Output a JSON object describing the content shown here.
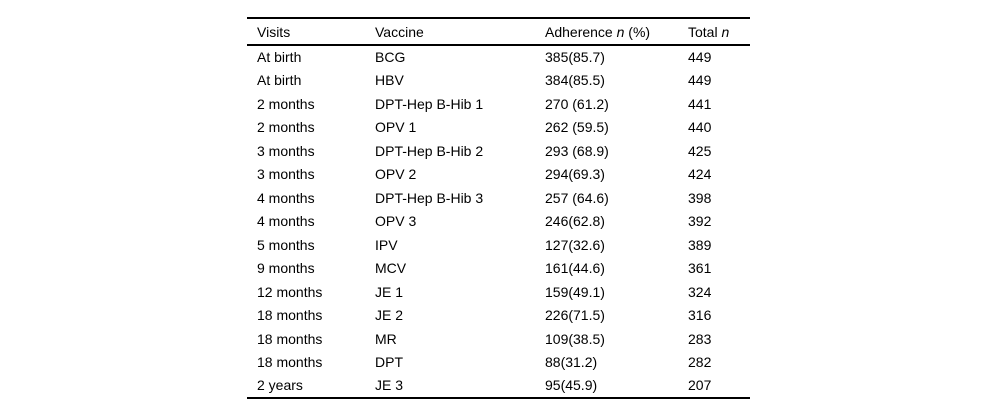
{
  "colors": {
    "background": "#ffffff",
    "text": "#000000",
    "rule": "#000000"
  },
  "table": {
    "headers": {
      "visits": "Visits",
      "vaccine": "Vaccine",
      "adherence_prefix": "Adherence ",
      "adherence_n": "n",
      "adherence_suffix": " (%)",
      "total_prefix": "Total ",
      "total_n": "n"
    },
    "rows": [
      {
        "visits": "At birth",
        "vaccine": "BCG",
        "adherence": "385(85.7)",
        "total": "449"
      },
      {
        "visits": "At birth",
        "vaccine": "HBV",
        "adherence": "384(85.5)",
        "total": "449"
      },
      {
        "visits": "2 months",
        "vaccine": "DPT-Hep B-Hib 1",
        "adherence": "270 (61.2)",
        "total": "441"
      },
      {
        "visits": "2 months",
        "vaccine": "OPV 1",
        "adherence": "262 (59.5)",
        "total": "440"
      },
      {
        "visits": "3 months",
        "vaccine": "DPT-Hep B-Hib 2",
        "adherence": "293 (68.9)",
        "total": "425"
      },
      {
        "visits": "3 months",
        "vaccine": "OPV 2",
        "adherence": "294(69.3)",
        "total": "424"
      },
      {
        "visits": "4 months",
        "vaccine": "DPT-Hep B-Hib 3",
        "adherence": "257 (64.6)",
        "total": "398"
      },
      {
        "visits": "4 months",
        "vaccine": "OPV 3",
        "adherence": "246(62.8)",
        "total": "392"
      },
      {
        "visits": "5 months",
        "vaccine": "IPV",
        "adherence": "127(32.6)",
        "total": "389"
      },
      {
        "visits": "9 months",
        "vaccine": "MCV",
        "adherence": "161(44.6)",
        "total": "361"
      },
      {
        "visits": "12 months",
        "vaccine": "JE 1",
        "adherence": "159(49.1)",
        "total": "324"
      },
      {
        "visits": "18 months",
        "vaccine": "JE 2",
        "adherence": "226(71.5)",
        "total": "316"
      },
      {
        "visits": "18 months",
        "vaccine": "MR",
        "adherence": "109(38.5)",
        "total": "283"
      },
      {
        "visits": "18 months",
        "vaccine": "DPT",
        "adherence": "88(31.2)",
        "total": "282"
      },
      {
        "visits": "2 years",
        "vaccine": "JE 3",
        "adherence": "95(45.9)",
        "total": "207"
      }
    ]
  }
}
